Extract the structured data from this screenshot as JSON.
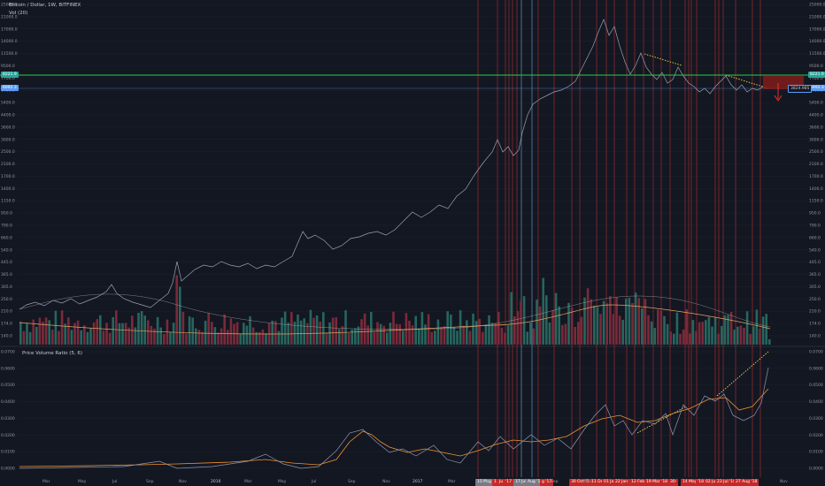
{
  "header": {
    "symbol_line": "Bitcoin / Dollar, 1W, BITFINEX",
    "volume_line": "Vol (20)",
    "indicator_line": "Price Volume Ratio (5, 6)"
  },
  "price_axis": {
    "ticks": [
      "25000.0",
      "21000.0",
      "17000.0",
      "14000.0",
      "11500.0",
      "9500.0",
      "7700.0",
      "6400.0",
      "5400.0",
      "4400.0",
      "3600.0",
      "3000.0",
      "2500.0",
      "2100.0",
      "1700.0",
      "1400.0",
      "1150.0",
      "950.0",
      "790.0",
      "660.0",
      "540.0",
      "445.0",
      "365.0",
      "305.0",
      "250.0",
      "210.0",
      "174.0",
      "140.0"
    ],
    "tags": [
      {
        "label": "8221.9",
        "side": "both",
        "color": "#26a69a",
        "kind": "green-level"
      },
      {
        "label": "6992.3",
        "side": "both",
        "color": "#5b9cf6",
        "kind": "blue-level"
      },
      {
        "label": "3824.985",
        "side": "right-inner",
        "color": "#5b9cf6",
        "kind": "current"
      }
    ]
  },
  "indicator_axis": {
    "ticks": [
      "0.0700",
      "0.0600",
      "0.0500",
      "0.0400",
      "0.0300",
      "0.0200",
      "0.0100",
      "0.0000"
    ]
  },
  "x_axis": {
    "ticks": [
      "Mar",
      "May",
      "Jul",
      "Sep",
      "Nov",
      "2016",
      "Mar",
      "May",
      "Jul",
      "Sep",
      "Nov",
      "2017",
      "Mar",
      "May",
      "Jul",
      "Sep",
      "Nov"
    ],
    "date_tags": [
      {
        "label": "15 May '17",
        "color": "#787b86"
      },
      {
        "label": "1",
        "color": "#c62828"
      },
      {
        "label": "Ju 1 '03",
        "color": "#c62828"
      },
      {
        "label": "'17",
        "color": "#c62828"
      },
      {
        "label": "17 Jul '17",
        "color": "#787b86"
      },
      {
        "label": "Aug '17",
        "color": "#787b86"
      },
      {
        "label": "g '17",
        "color": "#c62828"
      },
      {
        "label": "30 Oct '17",
        "color": "#c62828"
      },
      {
        "label": "11 Dec",
        "color": "#c62828"
      },
      {
        "label": "01 Jan",
        "color": "#c62828"
      },
      {
        "label": "22 Jan '18",
        "color": "#c62828"
      },
      {
        "label": "12 Feb '18",
        "color": "#c62828"
      },
      {
        "label": "19 Mar '18",
        "color": "#c62828"
      },
      {
        "label": "30-",
        "color": "#c62828"
      },
      {
        "label": "14 May '18",
        "color": "#c62828"
      },
      {
        "label": "'18",
        "color": "#c62828"
      },
      {
        "label": "02 Jul",
        "color": "#c62828"
      },
      {
        "label": "23 Jul '18",
        "color": "#c62828"
      },
      {
        "label": "27 Aug '18",
        "color": "#c62828"
      }
    ]
  },
  "colors": {
    "background": "#131722",
    "price_line": "#9aa0b0",
    "vol_up": "#26665e",
    "vol_down": "#7a2a3a",
    "vol_ma": "#e0a060",
    "pvr_fast": "#8e96b0",
    "pvr_slow": "#f0932b",
    "trend_dotted": "#f5d63d",
    "marker_red": "#d32f2f",
    "marker_blue": "#90caf9",
    "support_green": "#26d24a",
    "support_blue": "#5b9cf6",
    "target_box": "#7a1c1c"
  },
  "icons": {
    "down_arrow": "arrow-down-icon"
  }
}
